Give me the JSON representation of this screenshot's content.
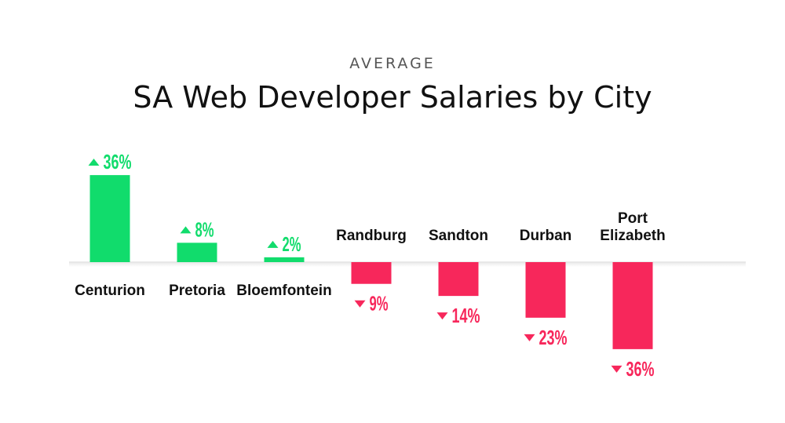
{
  "header": {
    "kicker": "AVERAGE",
    "title": "SA Web Developer Salaries by City"
  },
  "colors": {
    "up": "#11dc6c",
    "down": "#f7275b",
    "baseline": "#e6e6e6"
  },
  "chart_data": {
    "type": "bar",
    "title": "SA Web Developer Salaries by City",
    "subtitle": "AVERAGE",
    "xlabel": "",
    "ylabel": "",
    "unit": "%",
    "ylim": [
      -36,
      36
    ],
    "grid": false,
    "legend": "none",
    "categories": [
      "Centurion",
      "Pretoria",
      "Bloemfontein",
      "Randburg",
      "Sandton",
      "Durban",
      "Port Elizabeth"
    ],
    "category_lines": [
      [
        "Centurion"
      ],
      [
        "Pretoria"
      ],
      [
        "Bloemfontein"
      ],
      [
        "Randburg"
      ],
      [
        "Sandton"
      ],
      [
        "Durban"
      ],
      [
        "Port",
        "Elizabeth"
      ]
    ],
    "values": [
      36,
      8,
      2,
      -9,
      -14,
      -23,
      -36
    ],
    "data_labels": [
      "36%",
      "8%",
      "2%",
      "9%",
      "14%",
      "23%",
      "36%"
    ]
  }
}
